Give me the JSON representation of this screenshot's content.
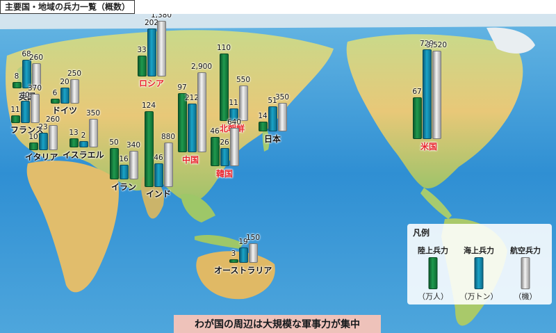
{
  "title": "主要国・地域の兵力一覧（概数）",
  "banner": "わが国の周辺は大規模な軍事力が集中",
  "legend": {
    "title": "凡例",
    "items": [
      {
        "label": "陸上兵力",
        "unit": "（万人）"
      },
      {
        "label": "海上兵力",
        "unit": "（万トン）"
      },
      {
        "label": "航空兵力",
        "unit": "（機）"
      }
    ]
  },
  "colors": {
    "army": "#1f9a4e",
    "navy": "#1aa4c8",
    "air": "#e8e8e8",
    "highlight_label": "#e8262d"
  },
  "countries": [
    {
      "name": "英国",
      "color": "black",
      "army": 8,
      "navy": 68,
      "air": 260,
      "army_label": "8",
      "navy_label": "68",
      "air_label": "260"
    },
    {
      "name": "ドイツ",
      "color": "black",
      "army": 6,
      "navy": 20,
      "air": 250,
      "army_label": "6",
      "navy_label": "20",
      "air_label": "250"
    },
    {
      "name": "フランス",
      "color": "black",
      "army": 11,
      "navy": 40,
      "air": 370,
      "army_label": "11",
      "navy_label": "40",
      "air_label": "370"
    },
    {
      "name": "イタリア",
      "color": "black",
      "army": 10,
      "navy": 23,
      "air": 260,
      "army_label": "10",
      "navy_label": "23",
      "air_label": "260"
    },
    {
      "name": "イスラエル",
      "color": "black",
      "army": 13,
      "navy": 2,
      "air": 350,
      "army_label": "13",
      "navy_label": "2",
      "air_label": "350"
    },
    {
      "name": "イラン",
      "color": "black",
      "army": 50,
      "navy": 16,
      "air": 340,
      "army_label": "50",
      "navy_label": "16",
      "air_label": "340"
    },
    {
      "name": "インド",
      "color": "black",
      "army": 124,
      "navy": 46,
      "air": 880,
      "army_label": "124",
      "navy_label": "46",
      "air_label": "880"
    },
    {
      "name": "ロシア",
      "color": "red",
      "army": 33,
      "navy": 202,
      "air": 1380,
      "army_label": "33",
      "navy_label": "202",
      "air_label": "1,380"
    },
    {
      "name": "中国",
      "color": "red",
      "army": 97,
      "navy": 212,
      "air": 2900,
      "army_label": "97",
      "navy_label": "212",
      "air_label": "2,900"
    },
    {
      "name": "北朝鮮",
      "color": "red",
      "army": 110,
      "navy": 11,
      "air": 550,
      "army_label": "110",
      "navy_label": "11",
      "air_label": "550"
    },
    {
      "name": "韓国",
      "color": "red",
      "army": 46,
      "navy": 26,
      "air": 640,
      "army_label": "46",
      "navy_label": "26",
      "air_label": "640"
    },
    {
      "name": "日本",
      "color": "black",
      "army": 14,
      "navy": 51,
      "air": 350,
      "army_label": "14",
      "navy_label": "51",
      "air_label": "350"
    },
    {
      "name": "米国",
      "color": "red",
      "army": 67,
      "navy": 729,
      "air": 3520,
      "army_label": "67",
      "navy_label": "729",
      "air_label": "3,520"
    },
    {
      "name": "オーストラリア",
      "color": "black",
      "army": 3,
      "navy": 19,
      "air": 150,
      "army_label": "3",
      "navy_label": "19",
      "air_label": "150"
    }
  ]
}
